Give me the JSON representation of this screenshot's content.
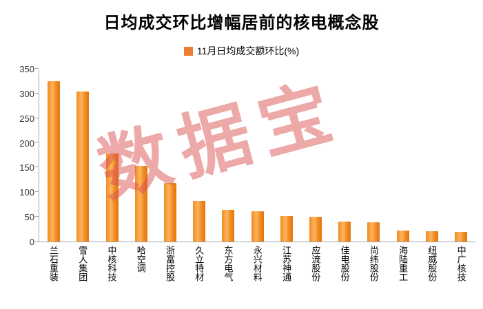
{
  "chart_data": {
    "type": "bar",
    "title": "日均成交环比增幅居前的核电概念股",
    "legend": "11月日均成交额环比(%)",
    "legend_position": "top",
    "categories": [
      "兰石重装",
      "雪人集团",
      "中核科技",
      "哈空调",
      "浙富控股",
      "久立特材",
      "东方电气",
      "永兴材料",
      "江苏神通",
      "应流股份",
      "佳电股份",
      "尚纬股份",
      "海陆重工",
      "纽威股份",
      "中广核技"
    ],
    "values": [
      325,
      304,
      178,
      153,
      118,
      82,
      64,
      61,
      52,
      50,
      41,
      39,
      23,
      21,
      20
    ],
    "xlabel": "",
    "ylabel": "",
    "ylim": [
      0,
      350
    ],
    "yticks": [
      0,
      50,
      100,
      150,
      200,
      250,
      300,
      350
    ],
    "grid": false,
    "bar_color": "#ed7d31",
    "bar_gradient": [
      "#e5740e",
      "#fdb45f",
      "#ef8c1f"
    ],
    "axis_color": "#a6a6a6",
    "watermark": "数据宝",
    "watermark_color": "#dd5353",
    "watermark_opacity": 0.5
  }
}
